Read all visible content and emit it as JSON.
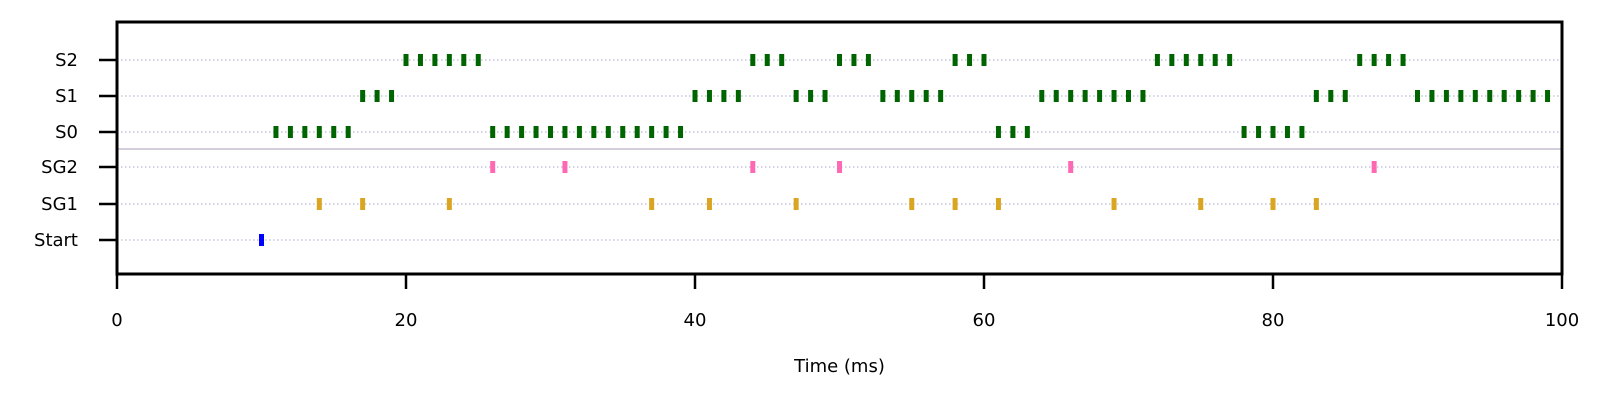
{
  "chart_data": {
    "type": "scatter",
    "xlabel": "Time (ms)",
    "ylabel": "",
    "xlim": [
      0,
      100
    ],
    "x_ticks": [
      0,
      20,
      40,
      60,
      80,
      100
    ],
    "categories": [
      "Start",
      "SG1",
      "SG2",
      "S0",
      "S1",
      "S2"
    ],
    "grid": "horizontal dotted at each row",
    "separator_between": [
      "SG2",
      "S0"
    ],
    "series": [
      {
        "row": "Start",
        "color": "#0000ff",
        "x": [
          10
        ]
      },
      {
        "row": "SG1",
        "color": "#daa520",
        "x": [
          14,
          17,
          23,
          37,
          41,
          47,
          55,
          58,
          61,
          69,
          75,
          80,
          83
        ]
      },
      {
        "row": "SG2",
        "color": "#ff69b4",
        "x": [
          26,
          31,
          44,
          50,
          66,
          87
        ]
      },
      {
        "row": "S0",
        "color": "#006400",
        "x": [
          11,
          12,
          13,
          14,
          15,
          16,
          26,
          27,
          28,
          29,
          30,
          31,
          32,
          33,
          34,
          35,
          36,
          37,
          38,
          39,
          61,
          62,
          63,
          78,
          79,
          80,
          81,
          82
        ]
      },
      {
        "row": "S1",
        "color": "#006400",
        "x": [
          17,
          18,
          19,
          40,
          41,
          42,
          43,
          47,
          48,
          49,
          53,
          54,
          55,
          56,
          57,
          64,
          65,
          66,
          67,
          68,
          69,
          70,
          71,
          83,
          84,
          85,
          90,
          91,
          92,
          93,
          94,
          95,
          96,
          97,
          98,
          99
        ]
      },
      {
        "row": "S2",
        "color": "#006400",
        "x": [
          20,
          21,
          22,
          23,
          24,
          25,
          44,
          45,
          46,
          50,
          51,
          52,
          58,
          59,
          60,
          72,
          73,
          74,
          75,
          76,
          77,
          86,
          87,
          88,
          89
        ]
      }
    ]
  }
}
